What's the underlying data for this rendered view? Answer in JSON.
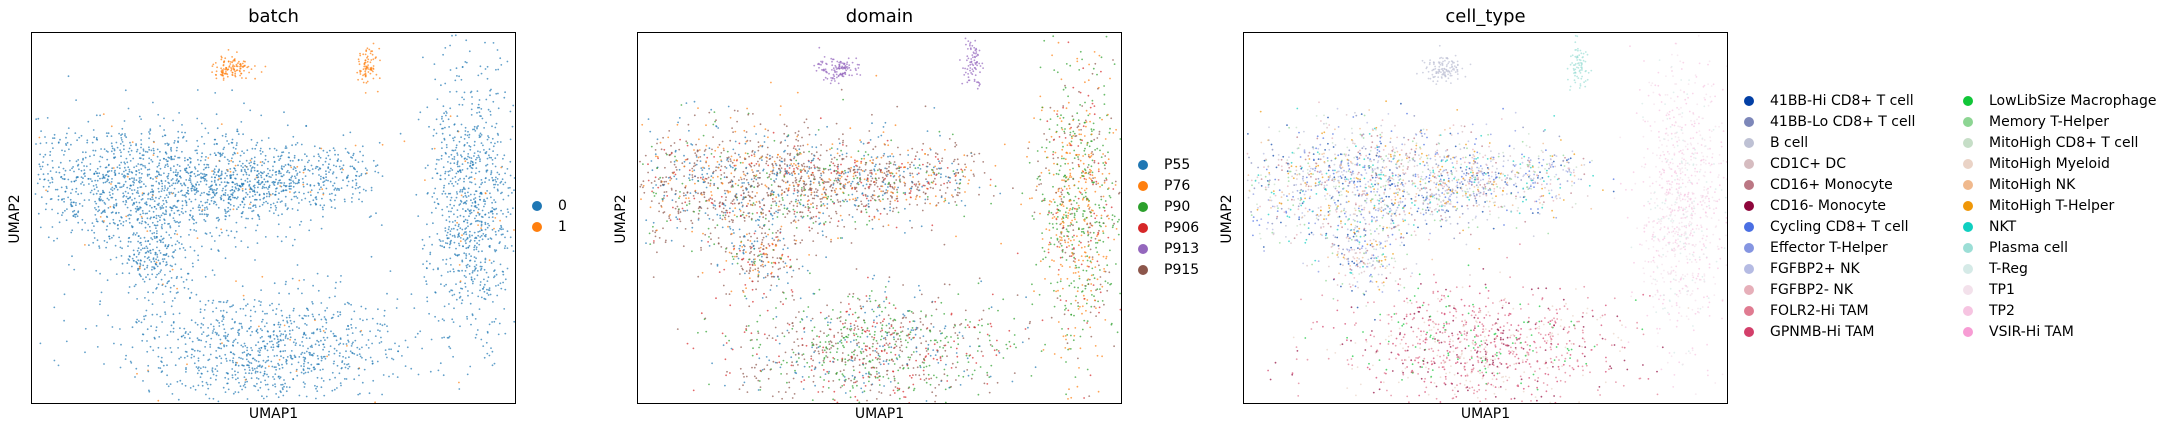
{
  "chart_data": [
    {
      "type": "scatter",
      "title": "batch",
      "xlabel": "UMAP1",
      "ylabel": "UMAP2",
      "grid": false,
      "legend_placement": "right",
      "series": [
        {
          "name": "0",
          "color": "#1f77b4"
        },
        {
          "name": "1",
          "color": "#ff7f0e"
        }
      ]
    },
    {
      "type": "scatter",
      "title": "domain",
      "xlabel": "UMAP1",
      "ylabel": "UMAP2",
      "grid": false,
      "legend_placement": "right",
      "series": [
        {
          "name": "P55",
          "color": "#1f77b4"
        },
        {
          "name": "P76",
          "color": "#ff7f0e"
        },
        {
          "name": "P90",
          "color": "#2ca02c"
        },
        {
          "name": "P906",
          "color": "#d62728"
        },
        {
          "name": "P913",
          "color": "#9467bd"
        },
        {
          "name": "P915",
          "color": "#8c564b"
        }
      ]
    },
    {
      "type": "scatter",
      "title": "cell_type",
      "xlabel": "UMAP1",
      "ylabel": "UMAP2",
      "grid": false,
      "legend_placement": "right",
      "series": [
        {
          "name": "41BB-Hi CD8+ T cell",
          "color": "#023fa5"
        },
        {
          "name": "41BB-Lo CD8+ T cell",
          "color": "#7d87b9"
        },
        {
          "name": "B cell",
          "color": "#bec1d4"
        },
        {
          "name": "CD1C+ DC",
          "color": "#d6bcc0"
        },
        {
          "name": "CD16+ Monocyte",
          "color": "#bb7784"
        },
        {
          "name": "CD16- Monocyte",
          "color": "#8e063b"
        },
        {
          "name": "Cycling CD8+ T cell",
          "color": "#4a6fe3"
        },
        {
          "name": "Effector T-Helper",
          "color": "#8595e1"
        },
        {
          "name": "FGFBP2+ NK",
          "color": "#b5bbe3"
        },
        {
          "name": "FGFBP2- NK",
          "color": "#e6afb9"
        },
        {
          "name": "FOLR2-Hi TAM",
          "color": "#e07b91"
        },
        {
          "name": "GPNMB-Hi TAM",
          "color": "#d33f6a"
        },
        {
          "name": "LowLibSize Macrophage",
          "color": "#11c638"
        },
        {
          "name": "Memory T-Helper",
          "color": "#8dd593"
        },
        {
          "name": "MitoHigh CD8+ T cell",
          "color": "#c6dec7"
        },
        {
          "name": "MitoHigh Myeloid",
          "color": "#ead3c6"
        },
        {
          "name": "MitoHigh NK",
          "color": "#f0b98d"
        },
        {
          "name": "MitoHigh T-Helper",
          "color": "#ef9708"
        },
        {
          "name": "NKT",
          "color": "#0fcfc0"
        },
        {
          "name": "Plasma cell",
          "color": "#9cded6"
        },
        {
          "name": "T-Reg",
          "color": "#d5eae7"
        },
        {
          "name": "TP1",
          "color": "#f3e1eb"
        },
        {
          "name": "TP2",
          "color": "#f6c4e1"
        },
        {
          "name": "VSIR-Hi TAM",
          "color": "#f79cd4"
        }
      ]
    }
  ]
}
